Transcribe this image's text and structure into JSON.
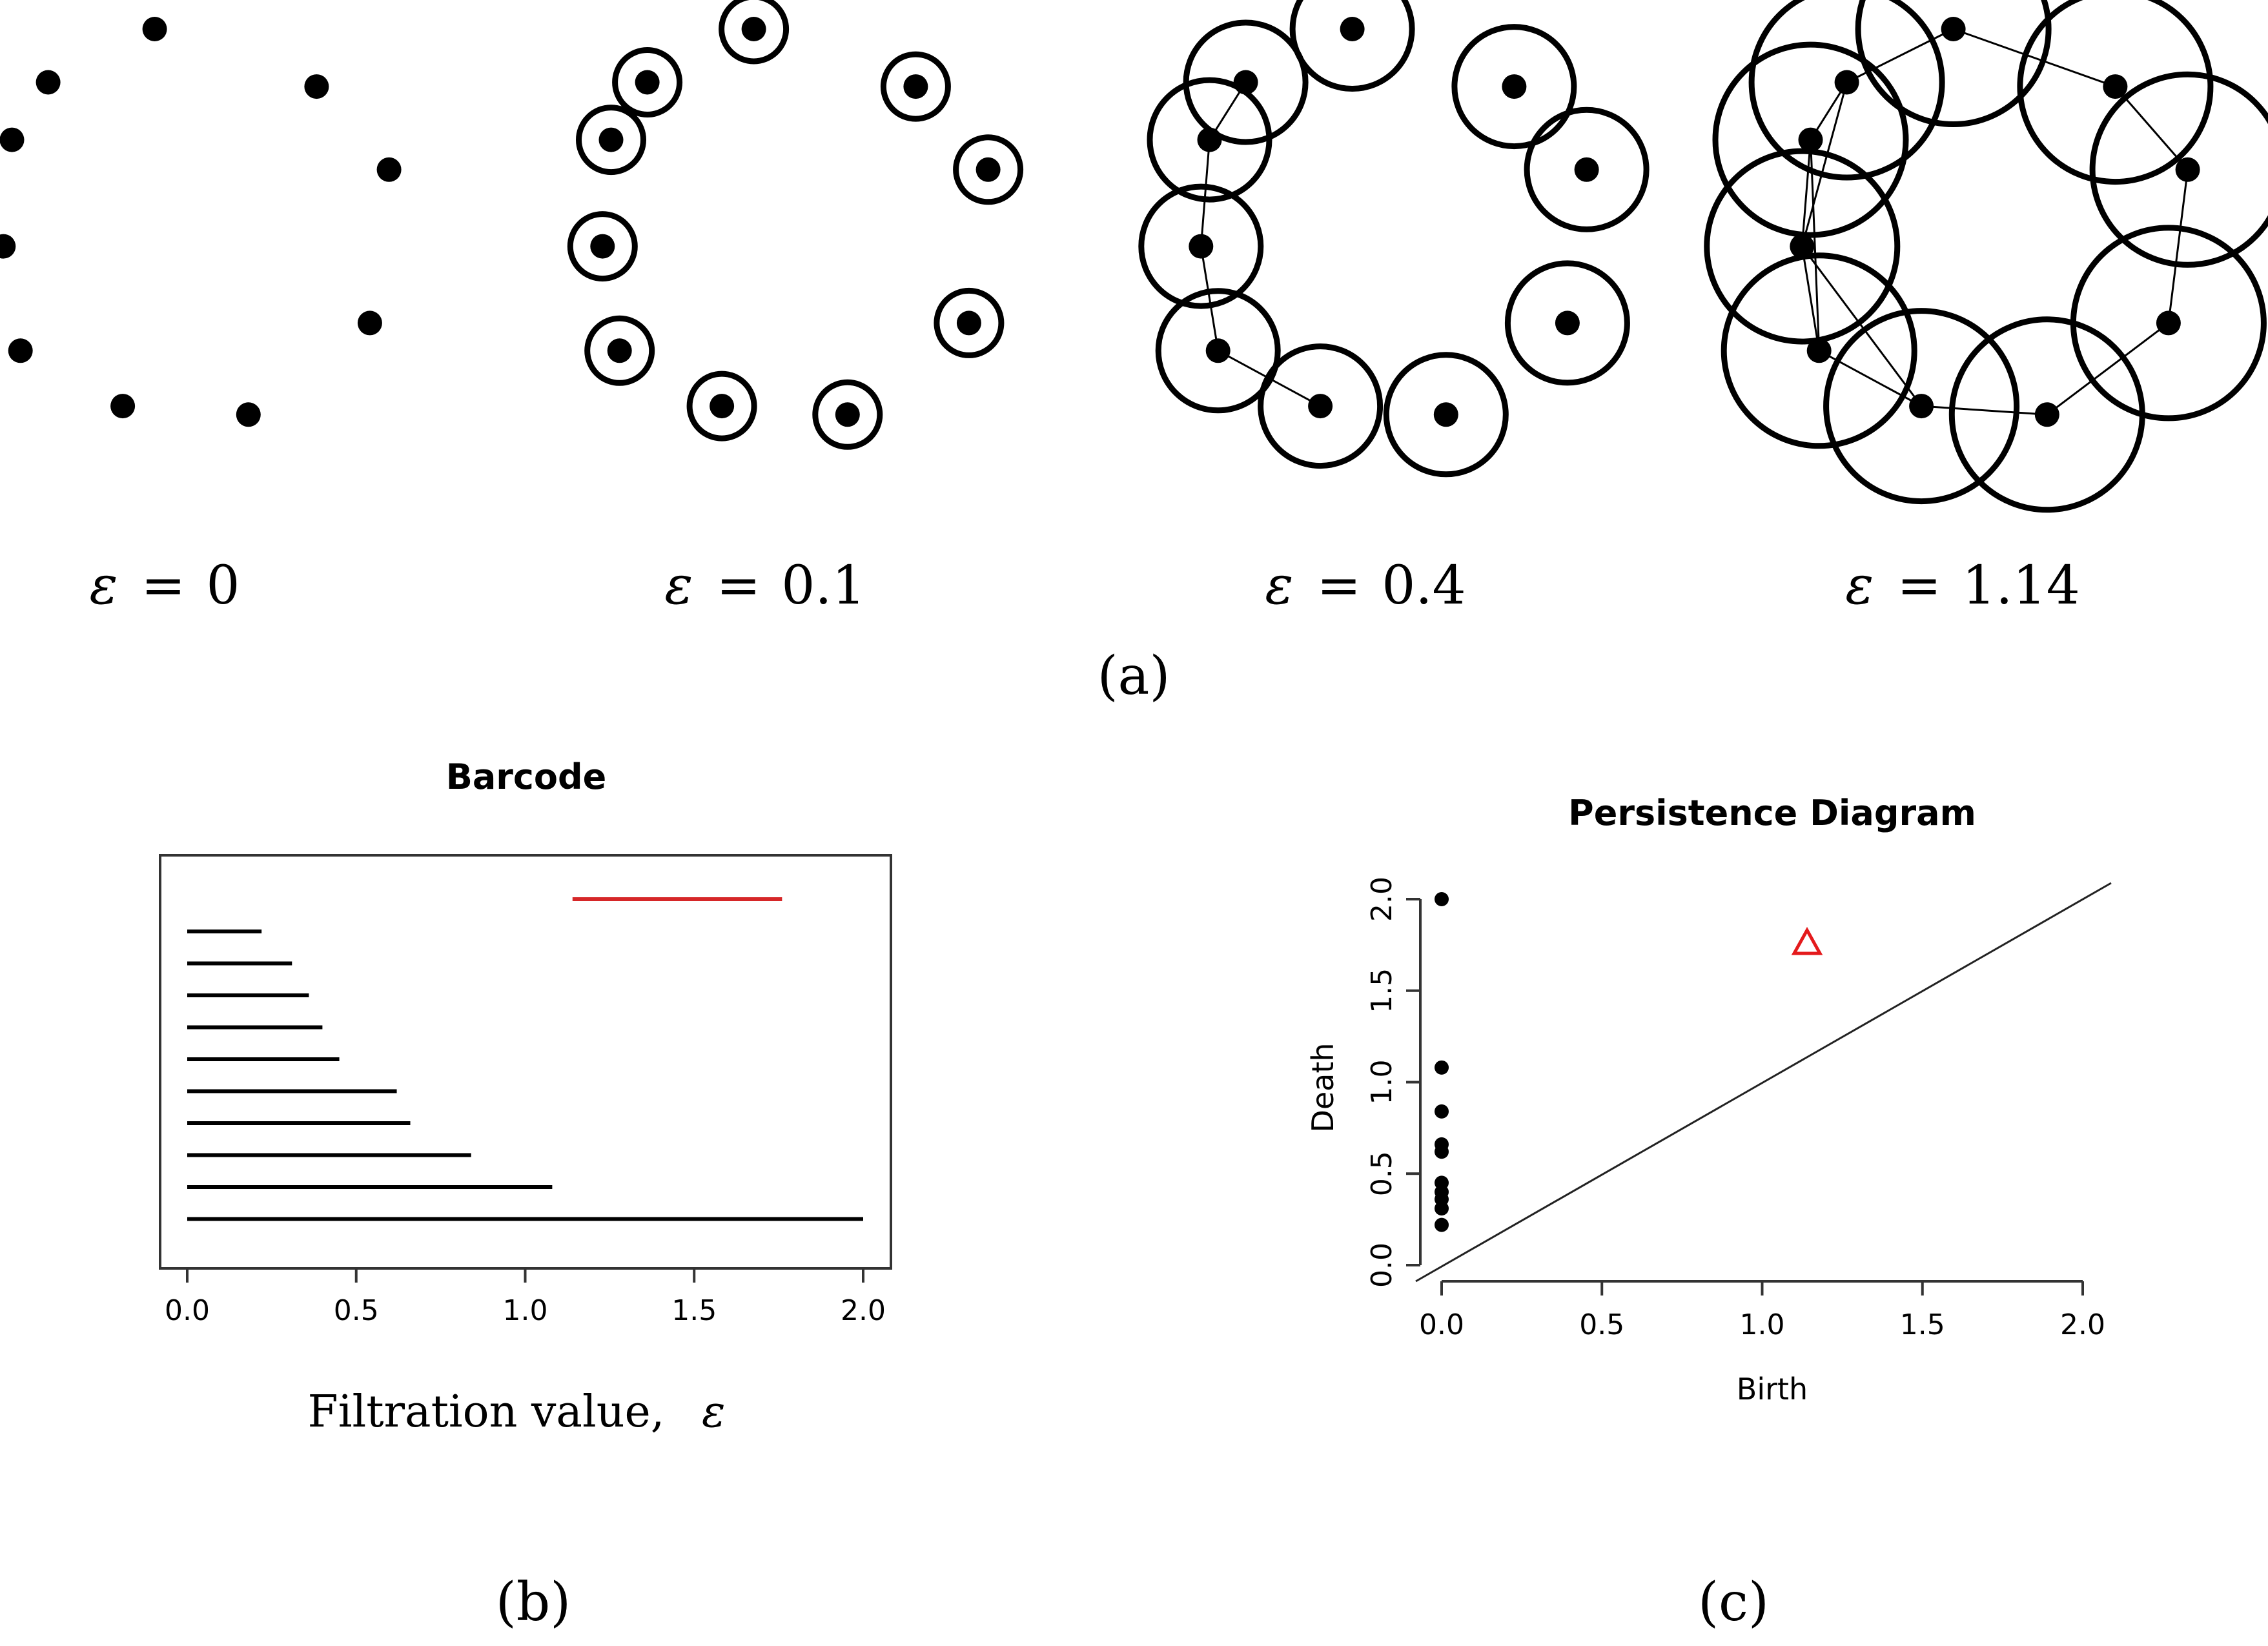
{
  "panel_a": {
    "caption": "(a)",
    "colors": {
      "point": "#000000",
      "edge": "#000000"
    },
    "point_cloud": [
      [
        -0.28,
        1.0
      ],
      [
        0.48,
        0.73
      ],
      [
        0.82,
        0.34
      ],
      [
        0.73,
        -0.38
      ],
      [
        0.16,
        -0.81
      ],
      [
        -0.43,
        -0.77
      ],
      [
        -0.91,
        -0.51
      ],
      [
        -0.99,
        -0.02
      ],
      [
        -0.95,
        0.48
      ],
      [
        -0.78,
        0.75
      ]
    ],
    "stages": [
      {
        "epsilon_symbol": "ε",
        "equals": "=",
        "value": "0",
        "ring_scale": 0,
        "edges": []
      },
      {
        "epsilon_symbol": "ε",
        "equals": "=",
        "value": "0.1",
        "ring_scale": 1.0,
        "edges": []
      },
      {
        "epsilon_symbol": "ε",
        "equals": "=",
        "value": "0.4",
        "ring_scale": 1.85,
        "edges": [
          [
            9,
            8
          ],
          [
            8,
            7
          ],
          [
            7,
            6
          ],
          [
            6,
            5
          ]
        ]
      },
      {
        "epsilon_symbol": "ε",
        "equals": "=",
        "value": "1.14",
        "ring_scale": 2.95,
        "edges": [
          [
            0,
            1
          ],
          [
            1,
            2
          ],
          [
            2,
            3
          ],
          [
            3,
            4
          ],
          [
            4,
            5
          ],
          [
            5,
            6
          ],
          [
            6,
            7
          ],
          [
            7,
            8
          ],
          [
            8,
            9
          ],
          [
            9,
            0
          ],
          [
            6,
            8
          ],
          [
            7,
            9
          ],
          [
            5,
            7
          ]
        ]
      }
    ]
  },
  "panel_b": {
    "caption": "(b)",
    "xlabel_text": "Filtration value,",
    "xlabel_symbol": "ε",
    "chart_data": {
      "type": "bar",
      "title": "Barcode",
      "xlabel": "Filtration value, ε",
      "ylabel": "",
      "xlim": [
        0,
        2.0
      ],
      "xticks": [
        "0.0",
        "0.5",
        "1.0",
        "1.5",
        "2.0"
      ],
      "series": [
        {
          "dimension": 1,
          "color": "#d62728",
          "bars": [
            {
              "start": 1.14,
              "end": 1.76
            }
          ]
        },
        {
          "dimension": 0,
          "color": "#000000",
          "bars": [
            {
              "start": 0,
              "end": 0.22
            },
            {
              "start": 0,
              "end": 0.31
            },
            {
              "start": 0,
              "end": 0.36
            },
            {
              "start": 0,
              "end": 0.4
            },
            {
              "start": 0,
              "end": 0.45
            },
            {
              "start": 0,
              "end": 0.62
            },
            {
              "start": 0,
              "end": 0.66
            },
            {
              "start": 0,
              "end": 0.84
            },
            {
              "start": 0,
              "end": 1.08
            },
            {
              "start": 0,
              "end": 2.0
            }
          ]
        }
      ]
    }
  },
  "panel_c": {
    "caption": "(c)",
    "chart_data": {
      "type": "scatter",
      "title": "Persistence Diagram",
      "xlabel": "Birth",
      "ylabel": "Death",
      "xlim": [
        0,
        2.0
      ],
      "ylim": [
        0,
        2.0
      ],
      "xticks": [
        "0.0",
        "0.5",
        "1.0",
        "1.5",
        "2.0"
      ],
      "yticks": [
        "0.0",
        "0.5",
        "1.0",
        "1.5",
        "2.0"
      ],
      "diagonal": true,
      "series": [
        {
          "dimension": 0,
          "marker": "dot",
          "color": "#000000",
          "points": [
            [
              0,
              2.0
            ],
            [
              0,
              1.08
            ],
            [
              0,
              0.84
            ],
            [
              0,
              0.66
            ],
            [
              0,
              0.62
            ],
            [
              0,
              0.45
            ],
            [
              0,
              0.4
            ],
            [
              0,
              0.36
            ],
            [
              0,
              0.31
            ],
            [
              0,
              0.22
            ]
          ]
        },
        {
          "dimension": 1,
          "marker": "triangle",
          "color": "#e41a1c",
          "points": [
            [
              1.14,
              1.76
            ]
          ]
        }
      ]
    }
  }
}
